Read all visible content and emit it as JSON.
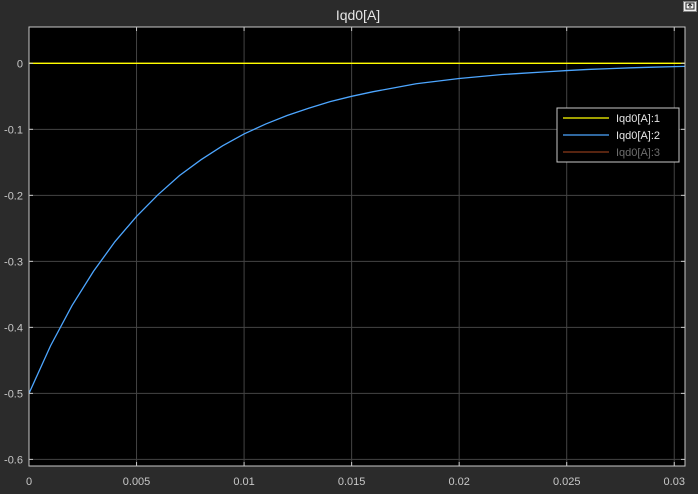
{
  "window": {
    "title": "Iqd0[A]"
  },
  "colors": {
    "background": "#2b2b2b",
    "axes": "#000000",
    "grid": "#444444",
    "frame": "#c8c8c8",
    "text": "#c8c8c8"
  },
  "toolbar": {
    "restore_icon": "restore-icon"
  },
  "chart_data": {
    "type": "line",
    "title": "Iqd0[A]",
    "xlabel": "",
    "ylabel": "",
    "xlim": [
      0,
      0.0305
    ],
    "ylim": [
      -0.61,
      0.055
    ],
    "xticks": [
      0,
      0.005,
      0.01,
      0.015,
      0.02,
      0.025,
      0.03
    ],
    "xtick_labels": [
      "0",
      "0.005",
      "0.01",
      "0.015",
      "0.02",
      "0.025",
      "0.03"
    ],
    "yticks": [
      0,
      -0.1,
      -0.2,
      -0.3,
      -0.4,
      -0.5,
      -0.6
    ],
    "ytick_labels": [
      "0",
      "-0.1",
      "-0.2",
      "-0.3",
      "-0.4",
      "-0.5",
      "-0.6"
    ],
    "grid": true,
    "legend_position": "top-right",
    "series": [
      {
        "name": "Iqd0[A]:1",
        "color": "#ffff00",
        "x": [
          0,
          0.005,
          0.01,
          0.015,
          0.02,
          0.025,
          0.0305
        ],
        "y": [
          0,
          0,
          0,
          0,
          0,
          0,
          0
        ]
      },
      {
        "name": "Iqd0[A]:2",
        "color": "#4da6ff",
        "x": [
          0,
          0.001,
          0.002,
          0.003,
          0.004,
          0.005,
          0.006,
          0.007,
          0.008,
          0.009,
          0.01,
          0.011,
          0.012,
          0.013,
          0.014,
          0.015,
          0.016,
          0.017,
          0.018,
          0.019,
          0.02,
          0.021,
          0.022,
          0.023,
          0.024,
          0.025,
          0.026,
          0.027,
          0.028,
          0.029,
          0.03,
          0.0305
        ],
        "y": [
          -0.5,
          -0.428,
          -0.367,
          -0.315,
          -0.27,
          -0.232,
          -0.199,
          -0.17,
          -0.146,
          -0.125,
          -0.107,
          -0.092,
          -0.079,
          -0.068,
          -0.058,
          -0.05,
          -0.043,
          -0.037,
          -0.031,
          -0.027,
          -0.023,
          -0.02,
          -0.017,
          -0.015,
          -0.013,
          -0.011,
          -0.0093,
          -0.008,
          -0.0068,
          -0.0059,
          -0.005,
          -0.0047
        ]
      },
      {
        "name": "Iqd0[A]:3",
        "color": "#8b3a1a",
        "x": [
          0,
          0.005,
          0.01,
          0.015,
          0.02,
          0.025,
          0.0305
        ],
        "y": [
          0,
          0,
          0,
          0,
          0,
          0,
          0
        ]
      }
    ]
  }
}
